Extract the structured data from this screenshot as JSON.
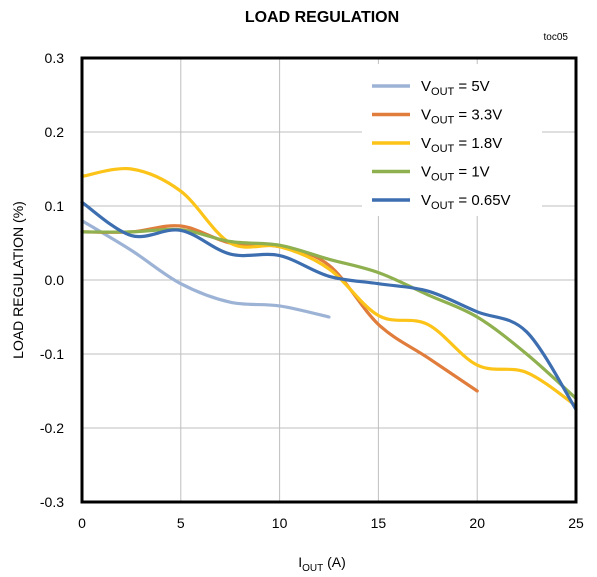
{
  "chart_data": {
    "type": "line",
    "title": "LOAD REGULATION",
    "annotation": "toc05",
    "xlabel": {
      "main": "I",
      "sub": "OUT",
      "unit": " (A)"
    },
    "ylabel": "LOAD REGULATION (%)",
    "xlim": [
      0,
      25
    ],
    "ylim": [
      -0.3,
      0.3
    ],
    "xticks": [
      "0",
      "5",
      "10",
      "15",
      "20",
      "25"
    ],
    "xtick_values": [
      0,
      5,
      10,
      15,
      20,
      25
    ],
    "yticks": [
      "0.3",
      "0.2",
      "0.1",
      "0.0",
      "-0.1",
      "-0.2",
      "-0.3"
    ],
    "ytick_values": [
      0.3,
      0.2,
      0.1,
      0.0,
      -0.1,
      -0.2,
      -0.3
    ],
    "grid": true,
    "legend_position": "top-right",
    "series": [
      {
        "name": "5V",
        "label_prefix": "V",
        "label_sub": "OUT",
        "label_value": " = 5V",
        "color": "#9db3d6",
        "x": [
          0,
          2.5,
          5,
          7.5,
          10,
          12.5
        ],
        "y": [
          0.08,
          0.04,
          -0.005,
          -0.03,
          -0.035,
          -0.05
        ]
      },
      {
        "name": "3.3V",
        "label_prefix": "V",
        "label_sub": "OUT",
        "label_value": " = 3.3V",
        "color": "#e07d3c",
        "x": [
          0,
          2.5,
          5,
          7.5,
          10,
          12.5,
          15,
          17.5,
          20
        ],
        "y": [
          0.065,
          0.065,
          0.073,
          0.05,
          0.045,
          0.02,
          -0.06,
          -0.105,
          -0.15
        ]
      },
      {
        "name": "1.8V",
        "label_prefix": "V",
        "label_sub": "OUT",
        "label_value": " = 1.8V",
        "color": "#fcc419",
        "x": [
          0,
          2.5,
          5,
          7.5,
          10,
          12.5,
          15,
          17.5,
          20,
          22.5,
          25
        ],
        "y": [
          0.14,
          0.15,
          0.12,
          0.05,
          0.045,
          0.015,
          -0.048,
          -0.06,
          -0.115,
          -0.125,
          -0.17
        ]
      },
      {
        "name": "1V",
        "label_prefix": "V",
        "label_sub": "OUT",
        "label_value": " = 1V",
        "color": "#8fb04f",
        "x": [
          0,
          2.5,
          5,
          7.5,
          10,
          12.5,
          15,
          17.5,
          20,
          22.5,
          25
        ],
        "y": [
          0.065,
          0.065,
          0.068,
          0.052,
          0.047,
          0.028,
          0.01,
          -0.02,
          -0.05,
          -0.1,
          -0.16
        ]
      },
      {
        "name": "0.65V",
        "label_prefix": "V",
        "label_sub": "OUT",
        "label_value": " = 0.65V",
        "color": "#3c6eb0",
        "x": [
          0,
          2.5,
          5,
          7.5,
          10,
          12.5,
          15,
          17.5,
          20,
          22.5,
          25
        ],
        "y": [
          0.105,
          0.06,
          0.067,
          0.035,
          0.033,
          0.005,
          -0.005,
          -0.015,
          -0.043,
          -0.07,
          -0.175
        ]
      }
    ]
  }
}
